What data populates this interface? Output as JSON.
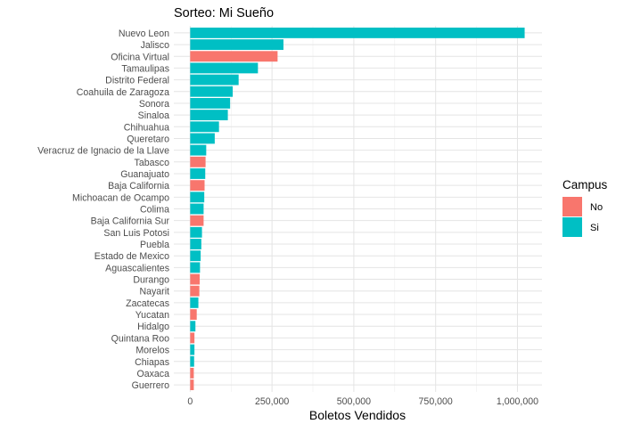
{
  "chart_data": {
    "type": "bar",
    "orientation": "horizontal",
    "title": "Sorteo: Mi Sueño",
    "xlabel": "Boletos Vendidos",
    "ylabel": "",
    "xlim": [
      -50000,
      1075000
    ],
    "xticks": [
      0,
      250000,
      500000,
      750000,
      1000000
    ],
    "xtick_labels": [
      "0",
      "250,000",
      "500,000",
      "750,000",
      "1,000,000"
    ],
    "grid": true,
    "legend": {
      "title": "Campus",
      "placement": "right",
      "entries": [
        {
          "label": "No",
          "color": "#F8766D"
        },
        {
          "label": "Si",
          "color": "#00BFC4"
        }
      ]
    },
    "categories": [
      "Nuevo Leon",
      "Jalisco",
      "Oficina Virtual",
      "Tamaulipas",
      "Distrito Federal",
      "Coahuila de Zaragoza",
      "Sonora",
      "Sinaloa",
      "Chihuahua",
      "Queretaro",
      "Veracruz de Ignacio de la Llave",
      "Tabasco",
      "Guanajuato",
      "Baja California",
      "Michoacan de Ocampo",
      "Colima",
      "Baja California Sur",
      "San Luis Potosi",
      "Puebla",
      "Estado de Mexico",
      "Aguascalientes",
      "Durango",
      "Nayarit",
      "Zacatecas",
      "Yucatan",
      "Hidalgo",
      "Quintana Roo",
      "Morelos",
      "Chiapas",
      "Oaxaca",
      "Guerrero"
    ],
    "values": [
      1022000,
      285000,
      267000,
      207000,
      148000,
      130000,
      122000,
      115000,
      88000,
      75000,
      49000,
      47000,
      46000,
      44000,
      43000,
      41000,
      41000,
      36000,
      34000,
      32000,
      30000,
      29000,
      28000,
      25000,
      20000,
      16000,
      13000,
      13000,
      12000,
      11000,
      11000
    ],
    "campus": [
      "Si",
      "Si",
      "No",
      "Si",
      "Si",
      "Si",
      "Si",
      "Si",
      "Si",
      "Si",
      "Si",
      "No",
      "Si",
      "No",
      "Si",
      "Si",
      "No",
      "Si",
      "Si",
      "Si",
      "Si",
      "No",
      "No",
      "Si",
      "No",
      "Si",
      "No",
      "Si",
      "Si",
      "No",
      "No"
    ]
  }
}
